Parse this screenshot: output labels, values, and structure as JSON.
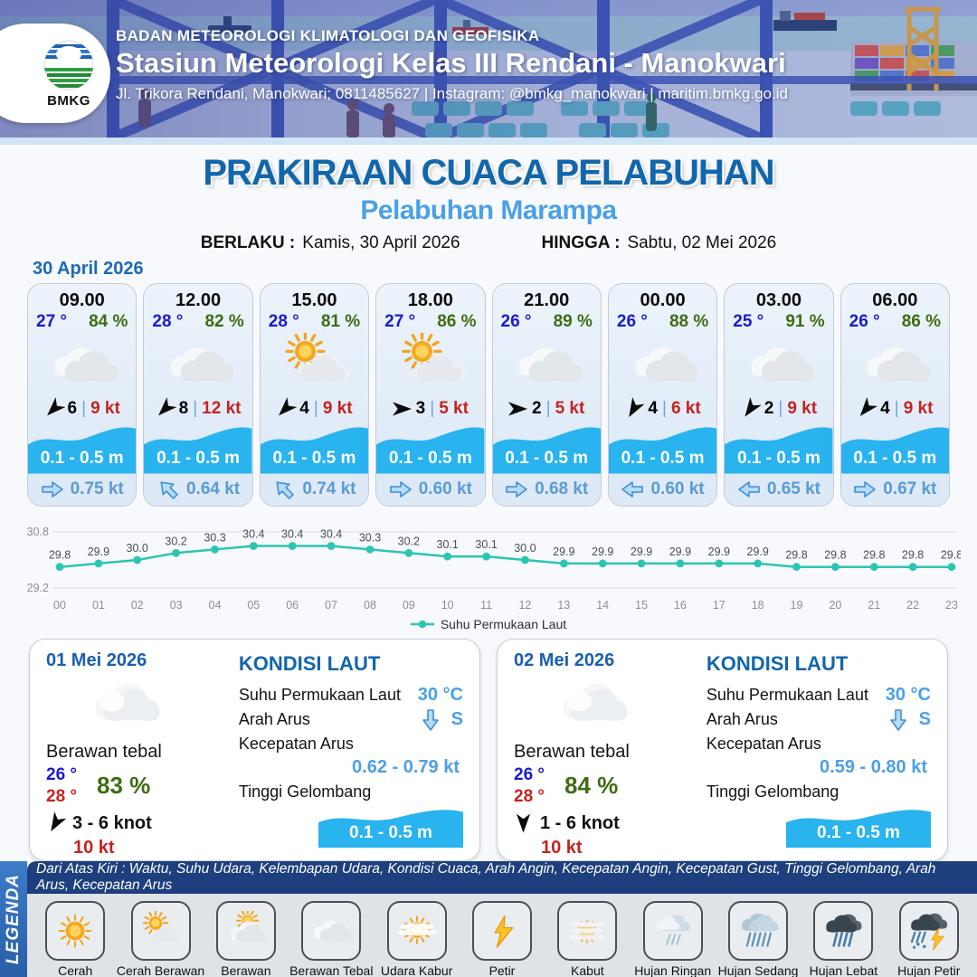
{
  "colors": {
    "accent_blue": "#1266ab",
    "subtitle_blue": "#4aa0e8",
    "teal": "#2cc5b1",
    "wave_blue": "#29b3ef",
    "red": "#c62320",
    "green": "#3f6c12",
    "temp_blue": "#1a1ad0",
    "navy_bar": "#1e3f7d"
  },
  "header": {
    "logo_text": "BMKG",
    "line1": "BADAN METEOROLOGI KLIMATOLOGI DAN GEOFISIKA",
    "line2": "Stasiun Meteorologi Kelas III Rendani - Manokwari",
    "line3": "Jl. Trikora Rendani, Manokwari; 0811485627 | Instagram: @bmkg_manokwari | maritim.bmkg.go.id"
  },
  "title": {
    "main": "PRAKIRAAN CUACA PELABUHAN",
    "subtitle": "Pelabuhan Marampa",
    "berlaku_label": "BERLAKU :",
    "berlaku_value": "Kamis, 30 April 2026",
    "hingga_label": "HINGGA :",
    "hingga_value": "Sabtu, 02 Mei 2026"
  },
  "forecast": {
    "date": "30 April 2026",
    "cards": [
      {
        "time": "09.00",
        "temp": "27 °",
        "humidity": "84 %",
        "icon": "berawan-tebal",
        "wind_deg": 135,
        "wind_speed": "6",
        "sep": "|",
        "gust": "9 kt",
        "wave": "0.1 - 0.5 m",
        "current_deg": 0,
        "current": "0.75 kt"
      },
      {
        "time": "12.00",
        "temp": "28 °",
        "humidity": "82 %",
        "icon": "berawan-tebal",
        "wind_deg": 135,
        "wind_speed": "8",
        "sep": "|",
        "gust": "12 kt",
        "wave": "0.1 - 0.5 m",
        "current_deg": -135,
        "current": "0.64 kt"
      },
      {
        "time": "15.00",
        "temp": "28 °",
        "humidity": "81 %",
        "icon": "cerah-berawan",
        "wind_deg": 135,
        "wind_speed": "4",
        "sep": "|",
        "gust": "9 kt",
        "wave": "0.1 - 0.5 m",
        "current_deg": -135,
        "current": "0.74 kt"
      },
      {
        "time": "18.00",
        "temp": "27 °",
        "humidity": "86 %",
        "icon": "cerah-berawan",
        "wind_deg": 0,
        "wind_speed": "3",
        "sep": "|",
        "gust": "5 kt",
        "wave": "0.1 - 0.5 m",
        "current_deg": 0,
        "current": "0.60 kt"
      },
      {
        "time": "21.00",
        "temp": "26 °",
        "humidity": "89 %",
        "icon": "berawan-tebal",
        "wind_deg": 0,
        "wind_speed": "2",
        "sep": "|",
        "gust": "5 kt",
        "wave": "0.1 - 0.5 m",
        "current_deg": 0,
        "current": "0.68 kt"
      },
      {
        "time": "00.00",
        "temp": "26 °",
        "humidity": "88 %",
        "icon": "berawan-tebal",
        "wind_deg": 120,
        "wind_speed": "4",
        "sep": "|",
        "gust": "6 kt",
        "wave": "0.1 - 0.5 m",
        "current_deg": 180,
        "current": "0.60 kt"
      },
      {
        "time": "03.00",
        "temp": "25 °",
        "humidity": "91 %",
        "icon": "berawan-tebal",
        "wind_deg": 125,
        "wind_speed": "2",
        "sep": "|",
        "gust": "9 kt",
        "wave": "0.1 - 0.5 m",
        "current_deg": 180,
        "current": "0.65 kt"
      },
      {
        "time": "06.00",
        "temp": "26 °",
        "humidity": "86 %",
        "icon": "berawan-tebal",
        "wind_deg": 130,
        "wind_speed": "4",
        "sep": "|",
        "gust": "9 kt",
        "wave": "0.1 - 0.5 m",
        "current_deg": 0,
        "current": "0.67 kt"
      }
    ]
  },
  "chart_data": {
    "type": "line",
    "series_name": "Suhu Permukaan Laut",
    "x": [
      "00",
      "01",
      "02",
      "03",
      "04",
      "05",
      "06",
      "07",
      "08",
      "09",
      "10",
      "11",
      "12",
      "13",
      "14",
      "15",
      "16",
      "17",
      "18",
      "19",
      "20",
      "21",
      "22",
      "23"
    ],
    "values": [
      29.8,
      29.9,
      30.0,
      30.2,
      30.3,
      30.4,
      30.4,
      30.4,
      30.3,
      30.2,
      30.1,
      30.1,
      30.0,
      29.9,
      29.9,
      29.9,
      29.9,
      29.9,
      29.9,
      29.8,
      29.8,
      29.8,
      29.8,
      29.8
    ],
    "ylim": [
      29.2,
      30.8
    ],
    "yticks": [
      30.8,
      29.2
    ],
    "line_color": "#2cc5b1",
    "grid": true,
    "legend_position": "bottom"
  },
  "daily": [
    {
      "date": "01 Mei 2026",
      "icon": "berawan-daily",
      "condition": "Berawan tebal",
      "temp_min": "26 °",
      "temp_max": "28 °",
      "humidity": "83 %",
      "wind_deg": 120,
      "wind_range": "3 - 6 knot",
      "gust": "10 kt",
      "sea": {
        "title": "KONDISI LAUT",
        "sst_label": "Suhu Permukaan Laut",
        "sst_value": "30 °C",
        "current_dir_label": "Arah Arus",
        "current_dir_value": "S",
        "current_dir_deg": 90,
        "current_speed_label": "Kecepatan Arus",
        "current_speed_value": "0.62 - 0.79 kt",
        "wave_label": "Tinggi Gelombang",
        "wave_value": "0.1 - 0.5 m"
      }
    },
    {
      "date": "02 Mei 2026",
      "icon": "berawan-daily",
      "condition": "Berawan tebal",
      "temp_min": "26 °",
      "temp_max": "28 °",
      "humidity": "84 %",
      "wind_deg": 90,
      "wind_range": "1 - 6 knot",
      "gust": "10 kt",
      "sea": {
        "title": "KONDISI LAUT",
        "sst_label": "Suhu Permukaan Laut",
        "sst_value": "30 °C",
        "current_dir_label": "Arah Arus",
        "current_dir_value": "S",
        "current_dir_deg": 90,
        "current_speed_label": "Kecepatan Arus",
        "current_speed_value": "0.59 - 0.80 kt",
        "wave_label": "Tinggi Gelombang",
        "wave_value": "0.1 - 0.5 m"
      }
    }
  ],
  "legend": {
    "title": "LEGENDA",
    "description": "Dari Atas Kiri : Waktu, Suhu Udara, Kelembapan Udara, Kondisi Cuaca, Arah Angin, Kecepatan Angin, Kecepatan Gust, Tinggi Gelombang, Arah Arus, Kecepatan Arus",
    "items": [
      {
        "label": "Cerah",
        "icon": "cerah"
      },
      {
        "label": "Cerah Berawan",
        "icon": "cerah-berawan"
      },
      {
        "label": "Berawan",
        "icon": "berawan"
      },
      {
        "label": "Berawan Tebal",
        "icon": "berawan-tebal"
      },
      {
        "label": "Udara Kabur",
        "icon": "udara-kabur"
      },
      {
        "label": "Petir",
        "icon": "petir"
      },
      {
        "label": "Kabut",
        "icon": "kabut"
      },
      {
        "label": "Hujan Ringan",
        "icon": "hujan-ringan"
      },
      {
        "label": "Hujan Sedang",
        "icon": "hujan-sedang"
      },
      {
        "label": "Hujan Lebat",
        "icon": "hujan-lebat"
      },
      {
        "label": "Hujan Petir",
        "icon": "hujan-petir"
      }
    ]
  }
}
